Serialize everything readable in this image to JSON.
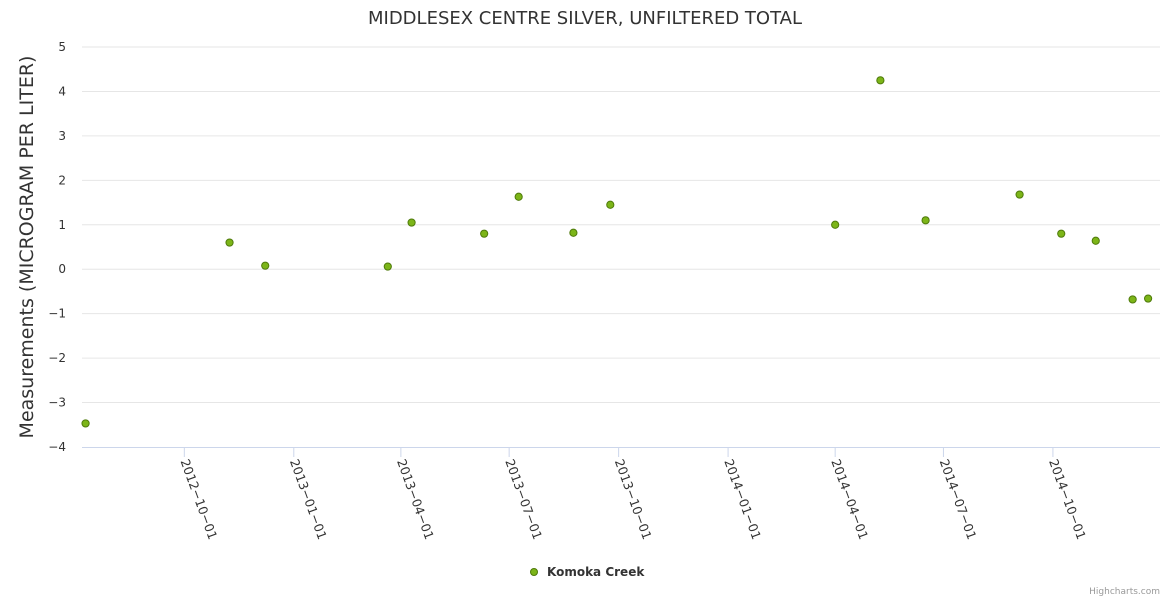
{
  "chart_data": {
    "type": "scatter",
    "title": "MIDDLESEX CENTRE SILVER, UNFILTERED TOTAL",
    "xlabel": "",
    "ylabel": "Measurements (MICROGRAM PER LITER)",
    "ylim": [
      -4,
      5
    ],
    "yticks": [
      5,
      4,
      3,
      2,
      1,
      0,
      -1,
      -2,
      -3,
      -4
    ],
    "xlim": [
      "2012-07-07",
      "2014-12-30"
    ],
    "xticks": [
      "2012-10-01",
      "2013-01-01",
      "2013-04-01",
      "2013-07-01",
      "2013-10-01",
      "2014-01-01",
      "2014-04-01",
      "2014-07-01",
      "2014-10-01"
    ],
    "grid": true,
    "legend_position": "bottom-center",
    "series": [
      {
        "name": "Komoka Creek",
        "color": "#7cb518",
        "points": [
          {
            "x": "2012-07-10",
            "y": -3.47
          },
          {
            "x": "2012-11-08",
            "y": 0.6
          },
          {
            "x": "2012-12-08",
            "y": 0.08
          },
          {
            "x": "2013-03-21",
            "y": 0.06
          },
          {
            "x": "2013-04-10",
            "y": 1.05
          },
          {
            "x": "2013-06-10",
            "y": 0.8
          },
          {
            "x": "2013-07-09",
            "y": 1.63
          },
          {
            "x": "2013-08-24",
            "y": 0.82
          },
          {
            "x": "2013-09-24",
            "y": 1.45
          },
          {
            "x": "2014-04-01",
            "y": 1.0
          },
          {
            "x": "2014-05-09",
            "y": 4.25
          },
          {
            "x": "2014-06-16",
            "y": 1.1
          },
          {
            "x": "2014-09-03",
            "y": 1.68
          },
          {
            "x": "2014-10-08",
            "y": 0.8
          },
          {
            "x": "2014-11-06",
            "y": 0.64
          },
          {
            "x": "2014-12-07",
            "y": -0.68
          },
          {
            "x": "2014-12-20",
            "y": -0.66
          }
        ]
      }
    ]
  },
  "credits": "Highcharts.com"
}
